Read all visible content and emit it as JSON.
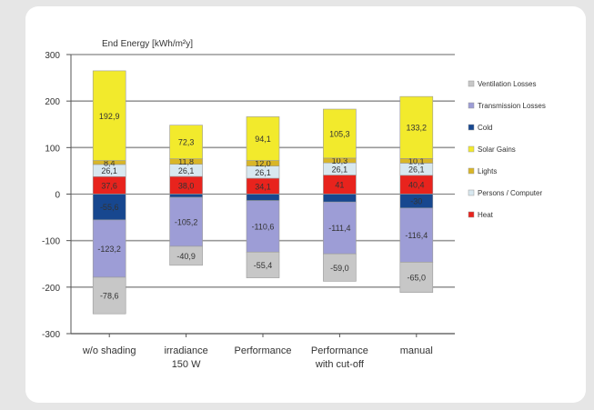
{
  "chart_data": {
    "type": "bar",
    "stacked": true,
    "ylabel": "End Energy [kWh/m²y]",
    "ylim": [
      -300,
      300
    ],
    "yticks": [
      -300,
      -200,
      -100,
      0,
      100,
      200,
      300
    ],
    "grid": true,
    "legend_position": "right",
    "categories": [
      "w/o shading",
      "irradiance\n150 W",
      "Performance",
      "Performance\nwith cut-off",
      "manual"
    ],
    "series": [
      {
        "name": "Heat",
        "color": "#e8231d",
        "values": [
          37.6,
          38.0,
          34.1,
          41.0,
          40.4
        ],
        "labels": [
          "37,6",
          "38,0",
          "34,1",
          "41",
          "40,4"
        ],
        "label_text_color": "#ff9c9c"
      },
      {
        "name": "Persons / Computer",
        "color": "#d8e8f0",
        "values": [
          26.1,
          26.1,
          26.1,
          26.1,
          26.1
        ],
        "labels": [
          "26,1",
          "26,1",
          "26,1",
          "26,1",
          "26,1"
        ]
      },
      {
        "name": "Lights",
        "color": "#d9b627",
        "values": [
          8.4,
          11.8,
          12.0,
          10.3,
          10.1
        ],
        "labels": [
          "8,4",
          "11,8",
          "12,0",
          "10,3",
          "10,1"
        ]
      },
      {
        "name": "Solar Gains",
        "color": "#f2ea2c",
        "values": [
          192.9,
          72.3,
          94.1,
          105.3,
          133.2
        ],
        "labels": [
          "192,9",
          "72,3",
          "94,1",
          "105,3",
          "133,2"
        ]
      },
      {
        "name": "Cold",
        "color": "#17478f",
        "values": [
          -55.6,
          -7.0,
          -14.0,
          -17.0,
          -30.0
        ],
        "labels": [
          "-55,6",
          "",
          "",
          "",
          "-30"
        ],
        "label_text_color": "#5a7bbd"
      },
      {
        "name": "Transmission Losses",
        "color": "#9d9dd6",
        "values": [
          -123.2,
          -105.2,
          -110.6,
          -111.4,
          -116.4
        ],
        "labels": [
          "-123,2",
          "-105,2",
          "-110,6",
          "-111,4",
          "-116,4"
        ]
      },
      {
        "name": "Ventilation Losses",
        "color": "#c7c7c7",
        "values": [
          -78.6,
          -40.9,
          -55.4,
          -59.0,
          -65.0
        ],
        "labels": [
          "-78,6",
          "-40,9",
          "-55,4",
          "-59,0",
          "-65,0"
        ]
      }
    ],
    "legend_order": [
      "Ventilation Losses",
      "Transmission Losses",
      "Cold",
      "Solar Gains",
      "Lights",
      "Persons / Computer",
      "Heat"
    ]
  }
}
